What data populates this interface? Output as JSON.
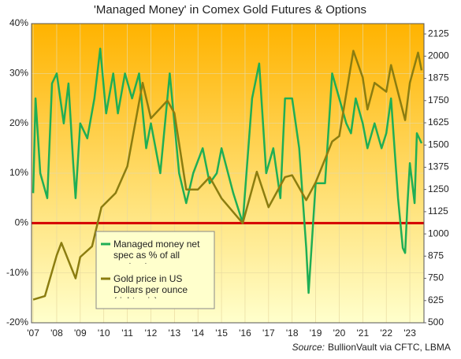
{
  "chart_data": {
    "type": "line",
    "title": "'Managed Money' in Comex Gold Futures & Options",
    "source_label": "Source:",
    "source": "BullionVault via CFTC, LBMA",
    "xlim": [
      2006.93,
      2023.6
    ],
    "xticks": [
      {
        "value": 2007,
        "label": "'07"
      },
      {
        "value": 2008,
        "label": "'08"
      },
      {
        "value": 2009,
        "label": "'09"
      },
      {
        "value": 2010,
        "label": "'10"
      },
      {
        "value": 2011,
        "label": "'11"
      },
      {
        "value": 2012,
        "label": "'12"
      },
      {
        "value": 2013,
        "label": "'13"
      },
      {
        "value": 2014,
        "label": "'14"
      },
      {
        "value": 2015,
        "label": "'15"
      },
      {
        "value": 2016,
        "label": "'16"
      },
      {
        "value": 2017,
        "label": "'17"
      },
      {
        "value": 2018,
        "label": "'18"
      },
      {
        "value": 2019,
        "label": "'19"
      },
      {
        "value": 2020,
        "label": "'20"
      },
      {
        "value": 2021,
        "label": "'21"
      },
      {
        "value": 2022,
        "label": "'22"
      },
      {
        "value": 2023,
        "label": "'23"
      }
    ],
    "ylim": [
      -20,
      40
    ],
    "yticks": [
      {
        "value": -20,
        "label": "-20%"
      },
      {
        "value": -10,
        "label": "-10%"
      },
      {
        "value": 0,
        "label": "0%"
      },
      {
        "value": 10,
        "label": "10%"
      },
      {
        "value": 20,
        "label": "20%"
      },
      {
        "value": 30,
        "label": "30%"
      },
      {
        "value": 40,
        "label": "40%"
      }
    ],
    "y2lim": [
      500,
      2183
    ],
    "y2ticks": [
      500,
      625,
      750,
      875,
      1000,
      1125,
      1250,
      1375,
      1500,
      1625,
      1750,
      1875,
      2000,
      2125
    ],
    "grid": true,
    "legend": "lower-left",
    "series": [
      {
        "name": "Managed money net spec as % of all contracts",
        "color": "#1fae55",
        "x": [
          2007.0,
          2007.1,
          2007.3,
          2007.6,
          2007.8,
          2008.0,
          2008.3,
          2008.5,
          2008.7,
          2008.8,
          2009.0,
          2009.3,
          2009.6,
          2009.85,
          2010.1,
          2010.4,
          2010.6,
          2010.9,
          2011.2,
          2011.5,
          2011.8,
          2012.0,
          2012.4,
          2012.8,
          2013.2,
          2013.5,
          2013.8,
          2014.2,
          2014.5,
          2014.8,
          2015.0,
          2015.5,
          2015.9,
          2016.3,
          2016.6,
          2016.9,
          2017.2,
          2017.5,
          2017.7,
          2018.0,
          2018.3,
          2018.6,
          2018.7,
          2019.0,
          2019.4,
          2019.7,
          2020.0,
          2020.3,
          2020.5,
          2020.7,
          2021.0,
          2021.2,
          2021.5,
          2021.8,
          2022.0,
          2022.2,
          2022.5,
          2022.7,
          2022.8,
          2022.9,
          2023.0,
          2023.2,
          2023.3,
          2023.5
        ],
        "values": [
          6,
          25,
          10,
          5,
          28,
          30,
          20,
          28,
          12,
          5,
          20,
          17,
          25,
          35,
          22,
          30,
          22,
          30,
          25,
          30,
          15,
          20,
          10,
          30,
          10,
          4,
          10,
          15,
          8,
          10,
          15,
          6,
          0,
          25,
          32,
          10,
          15,
          5,
          25,
          25,
          15,
          -5,
          -14,
          8,
          8,
          30,
          25,
          20,
          18,
          25,
          20,
          15,
          20,
          15,
          18,
          25,
          5,
          -5,
          -6,
          4,
          12,
          4,
          18,
          16
        ]
      },
      {
        "name": "Gold price in US Dollars per ounce (right axis)",
        "color": "#8b7d10",
        "axis": "y2",
        "x": [
          2007.0,
          2007.5,
          2008.0,
          2008.2,
          2008.8,
          2009.0,
          2009.5,
          2009.9,
          2010.5,
          2011.0,
          2011.65,
          2012.0,
          2012.7,
          2013.0,
          2013.5,
          2014.0,
          2014.5,
          2015.0,
          2015.9,
          2016.5,
          2017.0,
          2017.7,
          2018.0,
          2018.6,
          2019.0,
          2019.7,
          2020.0,
          2020.6,
          2021.0,
          2021.2,
          2021.5,
          2022.0,
          2022.2,
          2022.8,
          2023.0,
          2023.35,
          2023.5
        ],
        "values": [
          630,
          650,
          880,
          950,
          750,
          870,
          930,
          1150,
          1230,
          1380,
          1850,
          1650,
          1750,
          1680,
          1250,
          1250,
          1320,
          1200,
          1060,
          1350,
          1150,
          1320,
          1330,
          1190,
          1290,
          1520,
          1550,
          2030,
          1880,
          1700,
          1850,
          1800,
          1950,
          1640,
          1850,
          2020,
          1920
        ]
      }
    ]
  }
}
